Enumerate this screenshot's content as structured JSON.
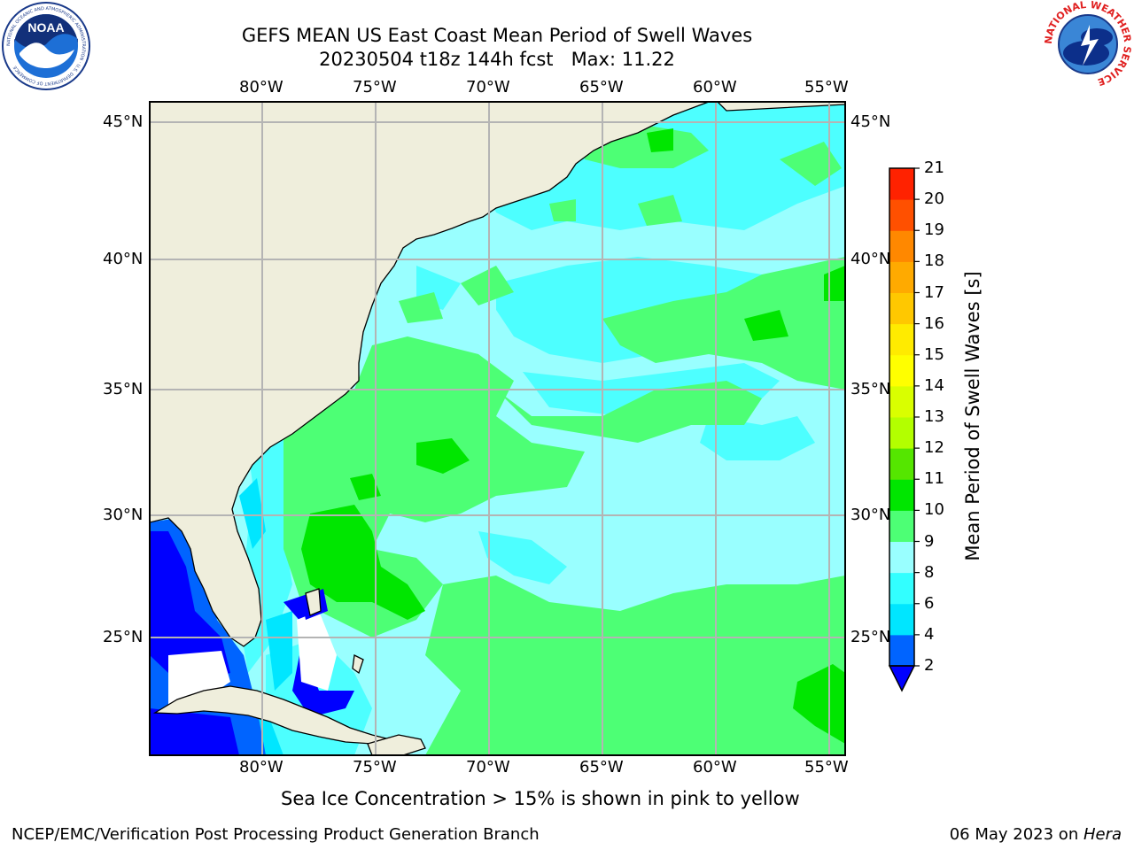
{
  "header": {
    "title_line1": "GEFS MEAN US East Coast Mean Period of Swell Waves",
    "title_line2": "20230504 t18z 144h fcst   Max: 11.22"
  },
  "logos": {
    "left": {
      "text": "NOAA",
      "ring_text": "NATIONAL OCEANIC AND ATMOSPHERIC ADMINISTRATION · U.S. DEPARTMENT OF COMMERCE"
    },
    "right": {
      "ring_text": "NATIONAL WEATHER SERVICE"
    }
  },
  "map": {
    "lon_labels": [
      "80°W",
      "75°W",
      "70°W",
      "65°W",
      "60°W",
      "55°W"
    ],
    "lat_labels": [
      "45°N",
      "40°N",
      "35°N",
      "30°N",
      "25°N"
    ],
    "colors": {
      "land": "#efeedc",
      "ocean_base": "#8ffcff",
      "grid": "#b4b4b4"
    }
  },
  "colorbar": {
    "label": "Mean Period of Swell Waves [s]",
    "tick_labels": [
      "2",
      "4",
      "6",
      "8",
      "9",
      "10",
      "11",
      "12",
      "13",
      "14",
      "15",
      "16",
      "17",
      "18",
      "19",
      "20",
      "21"
    ],
    "colors": [
      "#0064ff",
      "#00e6ff",
      "#32ffff",
      "#99ffff",
      "#4dff75",
      "#00e600",
      "#55e600",
      "#b3ff00",
      "#d9ff00",
      "#ffff00",
      "#ffeb00",
      "#ffc800",
      "#ffaa00",
      "#ff8800",
      "#ff5000",
      "#ff2200",
      "#ff0000"
    ],
    "under_color": "#0000ff"
  },
  "footer": {
    "note": "Sea Ice Concentration > 15% is shown in pink to yellow",
    "credit": "NCEP/EMC/Verification Post Processing Product Generation Branch",
    "date": "06 May 2023 on ",
    "host": "Hera"
  }
}
